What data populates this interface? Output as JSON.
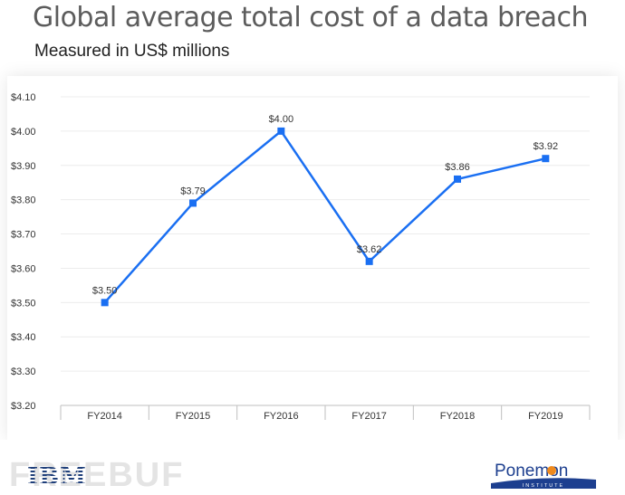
{
  "chart_data": {
    "type": "line",
    "title": "Global average total cost of a data breach",
    "subtitle": "Measured in US$ millions",
    "categories": [
      "FY2014",
      "FY2015",
      "FY2016",
      "FY2017",
      "FY2018",
      "FY2019"
    ],
    "series": [
      {
        "values": [
          3.5,
          3.79,
          4.0,
          3.62,
          3.86,
          3.92
        ],
        "data_labels": [
          "$3.50",
          "$3.79",
          "$4.00",
          "$3.62",
          "$3.86",
          "$3.92"
        ],
        "color": "#1a6ff2"
      }
    ],
    "yticks": [
      3.2,
      3.3,
      3.4,
      3.5,
      3.6,
      3.7,
      3.8,
      3.9,
      4.0,
      4.1
    ],
    "ytick_labels": [
      "$3.20",
      "$3.30",
      "$3.40",
      "$3.50",
      "$3.60",
      "$3.70",
      "$3.80",
      "$3.90",
      "$4.00",
      "$4.10"
    ],
    "ylim": [
      3.2,
      4.1
    ],
    "grid": true,
    "legend": false
  },
  "footer": {
    "ibm": "IBM",
    "watermark": "FREEBUF",
    "ponemon": "Ponemon",
    "institute": "INSTITUTE"
  },
  "colors": {
    "line": "#1a6ff2",
    "ponemon_blue": "#1d3f8f",
    "ponemon_orange": "#f08a1c"
  }
}
